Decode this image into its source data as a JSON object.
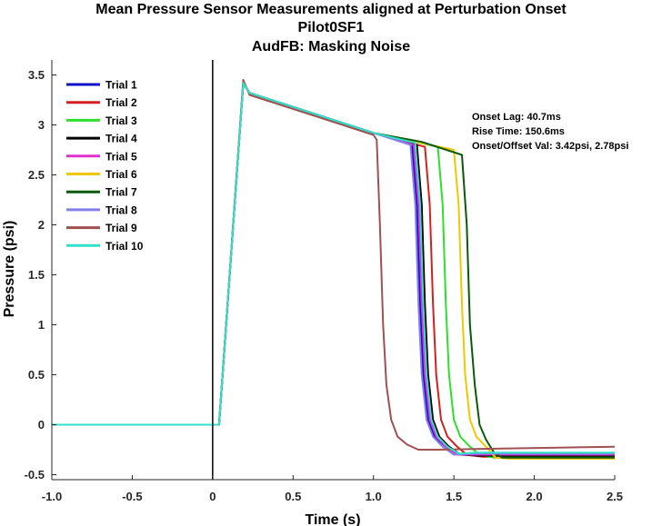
{
  "chart_data": {
    "type": "line",
    "title": [
      "Mean Pressure Sensor Measurements aligned at Perturbation Onset",
      "Pilot0SF1",
      "AudFB: Masking Noise"
    ],
    "xlabel": "Time (s)",
    "ylabel": "Pressure (psi)",
    "xlim": [
      -1.0,
      2.5
    ],
    "ylim": [
      -0.55,
      3.65
    ],
    "xticks": [
      -1.0,
      -0.5,
      0,
      0.5,
      1.0,
      1.5,
      2.0,
      2.5
    ],
    "xtick_labels": [
      "-1.0",
      "-0.5",
      "0",
      "0.5",
      "1.0",
      "1.5",
      "2.0",
      "2.5"
    ],
    "yticks": [
      -0.5,
      0,
      0.5,
      1,
      1.5,
      2,
      2.5,
      3,
      3.5
    ],
    "ytick_labels": [
      "-0.5",
      "0",
      "0.5",
      "1",
      "1.5",
      "2",
      "2.5",
      "3",
      "3.5"
    ],
    "grid": false,
    "legend_position": "top-left",
    "onset_line_x": 0,
    "annotations": [
      "Onset Lag: 40.7ms",
      "Rise Time: 150.6ms",
      "Onset/Offset Val: 3.42psi, 2.78psi"
    ],
    "series": [
      {
        "name": "Trial 1",
        "color": "#1010c8",
        "x": [
          -1.0,
          0.04,
          0.19,
          0.23,
          0.5,
          1.0,
          1.24,
          1.27,
          1.29,
          1.31,
          1.34,
          1.38,
          1.45,
          1.52,
          1.65,
          2.5
        ],
        "y": [
          0,
          0,
          3.42,
          3.32,
          3.18,
          2.92,
          2.8,
          2.2,
          1.2,
          0.5,
          0.05,
          -0.12,
          -0.22,
          -0.3,
          -0.3,
          -0.3
        ]
      },
      {
        "name": "Trial 2",
        "color": "#d42020",
        "x": [
          -1.0,
          0.04,
          0.19,
          0.23,
          0.5,
          1.0,
          1.32,
          1.35,
          1.37,
          1.39,
          1.42,
          1.46,
          1.52,
          1.58,
          1.68,
          2.5
        ],
        "y": [
          0,
          0,
          3.42,
          3.32,
          3.18,
          2.92,
          2.78,
          2.2,
          1.2,
          0.5,
          0.05,
          -0.12,
          -0.22,
          -0.3,
          -0.32,
          -0.32
        ]
      },
      {
        "name": "Trial 3",
        "color": "#2ee02e",
        "x": [
          -1.0,
          0.04,
          0.19,
          0.23,
          0.5,
          1.0,
          1.4,
          1.43,
          1.45,
          1.47,
          1.5,
          1.54,
          1.6,
          1.66,
          1.75,
          2.5
        ],
        "y": [
          0,
          0,
          3.42,
          3.32,
          3.18,
          2.92,
          2.78,
          2.2,
          1.2,
          0.5,
          0.05,
          -0.12,
          -0.22,
          -0.3,
          -0.33,
          -0.33
        ]
      },
      {
        "name": "Trial 4",
        "color": "#000000",
        "x": [
          -1.0,
          0.04,
          0.19,
          0.23,
          0.5,
          1.0,
          1.27,
          1.3,
          1.32,
          1.34,
          1.37,
          1.41,
          1.47,
          1.54,
          1.65,
          2.5
        ],
        "y": [
          0,
          0,
          3.42,
          3.32,
          3.18,
          2.92,
          2.8,
          2.2,
          1.2,
          0.5,
          0.05,
          -0.12,
          -0.22,
          -0.3,
          -0.31,
          -0.31
        ]
      },
      {
        "name": "Trial 5",
        "color": "#e030d0",
        "x": [
          -1.0,
          0.04,
          0.19,
          0.23,
          0.5,
          1.0,
          1.25,
          1.28,
          1.3,
          1.32,
          1.35,
          1.39,
          1.45,
          1.52,
          1.62,
          2.5
        ],
        "y": [
          0,
          0,
          3.42,
          3.32,
          3.18,
          2.92,
          2.8,
          2.2,
          1.2,
          0.5,
          0.05,
          -0.12,
          -0.22,
          -0.3,
          -0.3,
          -0.3
        ]
      },
      {
        "name": "Trial 6",
        "color": "#f0c800",
        "x": [
          -1.0,
          0.04,
          0.19,
          0.23,
          0.5,
          1.0,
          1.5,
          1.53,
          1.55,
          1.57,
          1.6,
          1.64,
          1.7,
          1.76,
          1.85,
          2.5
        ],
        "y": [
          0,
          0,
          3.42,
          3.32,
          3.18,
          2.92,
          2.75,
          2.2,
          1.2,
          0.5,
          0.05,
          -0.12,
          -0.22,
          -0.33,
          -0.34,
          -0.34
        ]
      },
      {
        "name": "Trial 7",
        "color": "#0a5a0a",
        "x": [
          -1.0,
          0.04,
          0.19,
          0.23,
          0.5,
          1.0,
          1.3,
          1.55,
          1.58,
          1.6,
          1.63,
          1.66,
          1.7,
          1.75,
          1.8,
          2.5
        ],
        "y": [
          0,
          0,
          3.42,
          3.32,
          3.18,
          2.92,
          2.83,
          2.7,
          2.0,
          1.0,
          0.4,
          0.0,
          -0.15,
          -0.28,
          -0.33,
          -0.33
        ]
      },
      {
        "name": "Trial 8",
        "color": "#8080e8",
        "x": [
          -1.0,
          0.04,
          0.19,
          0.23,
          0.5,
          1.0,
          1.23,
          1.26,
          1.28,
          1.3,
          1.33,
          1.37,
          1.43,
          1.5,
          1.6,
          2.5
        ],
        "y": [
          0,
          0,
          3.42,
          3.32,
          3.18,
          2.92,
          2.8,
          2.2,
          1.2,
          0.5,
          0.05,
          -0.12,
          -0.22,
          -0.3,
          -0.29,
          -0.29
        ]
      },
      {
        "name": "Trial 9",
        "color": "#a05050",
        "x": [
          -1.0,
          0.04,
          0.19,
          0.23,
          0.5,
          1.0,
          1.02,
          1.04,
          1.06,
          1.08,
          1.11,
          1.15,
          1.21,
          1.28,
          1.4,
          2.5
        ],
        "y": [
          0,
          0,
          3.45,
          3.3,
          3.16,
          2.9,
          2.85,
          2.0,
          1.0,
          0.4,
          0.05,
          -0.12,
          -0.2,
          -0.25,
          -0.25,
          -0.22
        ]
      },
      {
        "name": "Trial 10",
        "color": "#30e0c8",
        "x": [
          -1.0,
          0.04,
          0.19,
          0.23,
          0.5,
          1.0,
          1.26,
          1.29,
          1.31,
          1.33,
          1.36,
          1.4,
          1.46,
          1.53,
          1.63,
          2.5
        ],
        "y": [
          0,
          0,
          3.42,
          3.32,
          3.18,
          2.92,
          2.82,
          2.2,
          1.2,
          0.5,
          0.05,
          -0.12,
          -0.22,
          -0.29,
          -0.28,
          -0.28
        ]
      }
    ]
  }
}
